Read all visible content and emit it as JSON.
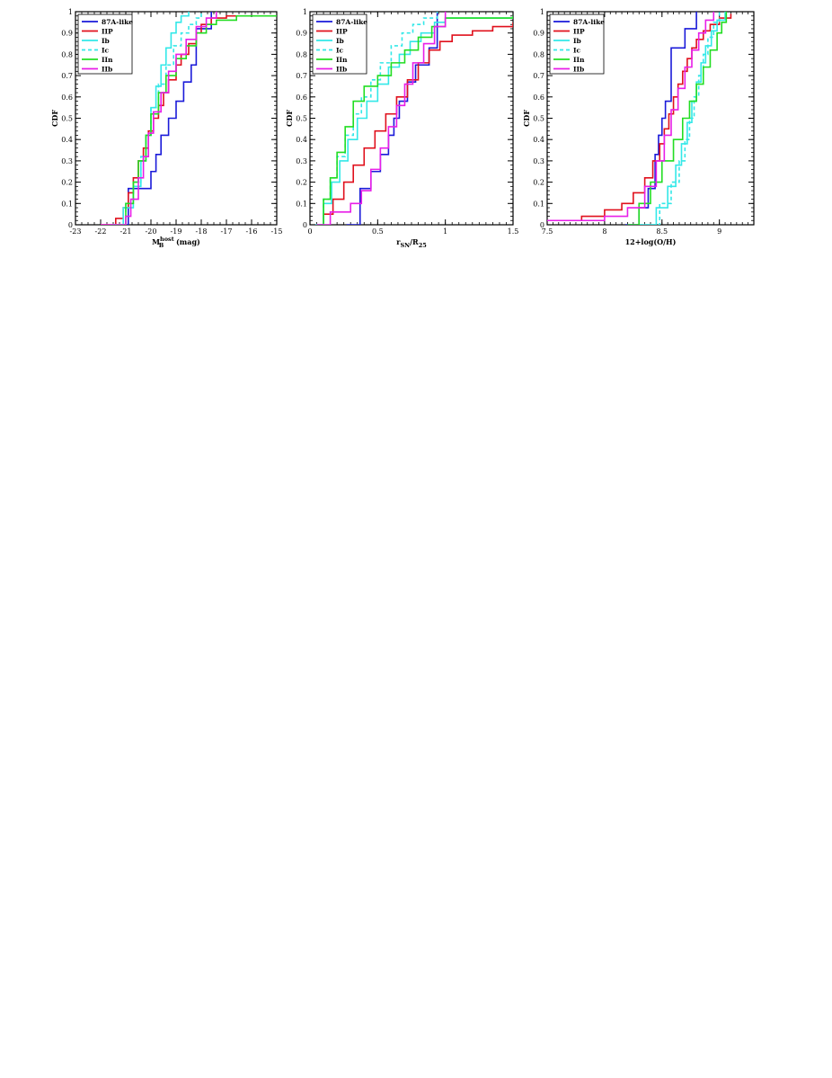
{
  "colors": {
    "87A-like": "#1a1ad9",
    "IIP": "#e0101c",
    "Ib": "#33e8e8",
    "Ic": "#33e8e8",
    "IIn": "#22dd22",
    "IIb": "#e81ee8"
  },
  "chart_data": [
    {
      "type": "line",
      "title": "",
      "xlabel": "M_B^host (mag)",
      "xlabel_main": "M",
      "xlabel_sub": "B",
      "xlabel_sup": "host",
      "xlabel_tail": " (mag)",
      "ylabel": "CDF",
      "xlim": [
        -23,
        -15
      ],
      "ylim": [
        0,
        1
      ],
      "xticks": [
        -23,
        -22,
        -21,
        -20,
        -19,
        -18,
        -17,
        -16,
        -15
      ],
      "xtick_labels": [
        "-23",
        "-22",
        "-21",
        "-20",
        "-19",
        "-18",
        "-17",
        "-16",
        "-15"
      ],
      "yticks": [
        0,
        0.1,
        0.2,
        0.3,
        0.4,
        0.5,
        0.6,
        0.7,
        0.8,
        0.9,
        1
      ],
      "ytick_labels": [
        "0",
        "0.1",
        "0.2",
        "0.3",
        "0.4",
        "0.5",
        "0.6",
        "0.7",
        "0.8",
        "0.9",
        "1"
      ],
      "legend": "top-left",
      "series": [
        {
          "name": "87A-like",
          "style": "solid",
          "x": [
            -21.2,
            -20.9,
            -20.3,
            -20.0,
            -19.8,
            -19.6,
            -19.3,
            -19.0,
            -18.7,
            -18.4,
            -18.2,
            -17.6
          ],
          "y": [
            0.0,
            0.17,
            0.17,
            0.25,
            0.33,
            0.42,
            0.5,
            0.58,
            0.67,
            0.75,
            0.92,
            1.0
          ]
        },
        {
          "name": "IIP",
          "style": "solid",
          "x": [
            -22.0,
            -21.4,
            -21.1,
            -20.9,
            -20.7,
            -20.5,
            -20.3,
            -20.1,
            -19.9,
            -19.7,
            -19.5,
            -19.3,
            -19.0,
            -18.8,
            -18.5,
            -18.2,
            -18.0,
            -17.6,
            -17.0,
            -15.0
          ],
          "y": [
            0.0,
            0.03,
            0.08,
            0.15,
            0.22,
            0.3,
            0.36,
            0.44,
            0.5,
            0.56,
            0.62,
            0.68,
            0.75,
            0.8,
            0.85,
            0.9,
            0.94,
            0.97,
            0.98,
            0.98
          ]
        },
        {
          "name": "Ib",
          "style": "solid",
          "x": [
            -21.6,
            -21.1,
            -20.7,
            -20.4,
            -20.2,
            -20.0,
            -19.8,
            -19.6,
            -19.4,
            -19.2,
            -19.0,
            -18.8,
            -18.5
          ],
          "y": [
            0.0,
            0.08,
            0.18,
            0.3,
            0.42,
            0.55,
            0.65,
            0.75,
            0.83,
            0.9,
            0.95,
            0.98,
            1.0
          ]
        },
        {
          "name": "Ic",
          "style": "dashed",
          "x": [
            -21.5,
            -21.0,
            -20.7,
            -20.4,
            -20.2,
            -20.0,
            -19.7,
            -19.4,
            -19.1,
            -18.8,
            -18.5,
            -18.2,
            -18.0
          ],
          "y": [
            0.0,
            0.1,
            0.2,
            0.32,
            0.42,
            0.55,
            0.66,
            0.75,
            0.84,
            0.9,
            0.94,
            0.97,
            1.0
          ]
        },
        {
          "name": "IIn",
          "style": "solid",
          "x": [
            -21.4,
            -21.0,
            -20.7,
            -20.5,
            -20.2,
            -20.0,
            -19.7,
            -19.4,
            -19.0,
            -18.6,
            -18.2,
            -17.8,
            -17.4,
            -16.6,
            -15.0
          ],
          "y": [
            0.0,
            0.1,
            0.2,
            0.3,
            0.42,
            0.52,
            0.62,
            0.7,
            0.78,
            0.84,
            0.9,
            0.94,
            0.96,
            0.98,
            0.98
          ]
        },
        {
          "name": "IIb",
          "style": "solid",
          "x": [
            -22.0,
            -21.0,
            -20.8,
            -20.5,
            -20.3,
            -20.1,
            -19.9,
            -19.6,
            -19.3,
            -19.0,
            -18.6,
            -18.2,
            -17.8,
            -17.4
          ],
          "y": [
            0.0,
            0.04,
            0.12,
            0.22,
            0.32,
            0.43,
            0.53,
            0.62,
            0.72,
            0.8,
            0.87,
            0.93,
            0.97,
            1.0
          ]
        }
      ]
    },
    {
      "type": "line",
      "title": "",
      "xlabel": "r_SN/R_25",
      "xlabel_main": "r",
      "xlabel_sub": "SN",
      "xlabel_mid": "/R",
      "xlabel_sub2": "25",
      "ylabel": "CDF",
      "xlim": [
        0,
        1.5
      ],
      "ylim": [
        0,
        1
      ],
      "xticks": [
        0,
        0.5,
        1,
        1.5
      ],
      "xtick_labels": [
        "0",
        "0.5",
        "1",
        "1.5"
      ],
      "yticks": [
        0,
        0.1,
        0.2,
        0.3,
        0.4,
        0.5,
        0.6,
        0.7,
        0.8,
        0.9,
        1
      ],
      "ytick_labels": [
        "0",
        "0.1",
        "0.2",
        "0.3",
        "0.4",
        "0.5",
        "0.6",
        "0.7",
        "0.8",
        "0.9",
        "1"
      ],
      "legend": "top-left",
      "series": [
        {
          "name": "87A-like",
          "style": "solid",
          "x": [
            0.27,
            0.37,
            0.45,
            0.52,
            0.58,
            0.62,
            0.66,
            0.72,
            0.78,
            0.88,
            0.94
          ],
          "y": [
            0.0,
            0.17,
            0.25,
            0.33,
            0.42,
            0.5,
            0.58,
            0.67,
            0.75,
            0.83,
            1.0
          ]
        },
        {
          "name": "IIP",
          "style": "solid",
          "x": [
            0.05,
            0.1,
            0.17,
            0.25,
            0.32,
            0.4,
            0.48,
            0.56,
            0.64,
            0.72,
            0.8,
            0.88,
            0.96,
            1.05,
            1.2,
            1.35,
            1.5
          ],
          "y": [
            0.0,
            0.05,
            0.12,
            0.2,
            0.28,
            0.36,
            0.44,
            0.52,
            0.6,
            0.68,
            0.76,
            0.82,
            0.86,
            0.89,
            0.91,
            0.93,
            0.95
          ]
        },
        {
          "name": "Ib",
          "style": "solid",
          "x": [
            0.04,
            0.1,
            0.16,
            0.22,
            0.28,
            0.35,
            0.42,
            0.5,
            0.58,
            0.66,
            0.74,
            0.82,
            0.92,
            1.0,
            1.5
          ],
          "y": [
            0.0,
            0.1,
            0.2,
            0.3,
            0.4,
            0.5,
            0.58,
            0.66,
            0.74,
            0.8,
            0.86,
            0.9,
            0.95,
            0.97,
            0.98
          ]
        },
        {
          "name": "Ic",
          "style": "dashed",
          "x": [
            0.04,
            0.1,
            0.15,
            0.2,
            0.26,
            0.32,
            0.38,
            0.45,
            0.52,
            0.6,
            0.68,
            0.76,
            0.84,
            0.94
          ],
          "y": [
            0.0,
            0.12,
            0.22,
            0.32,
            0.42,
            0.52,
            0.6,
            0.68,
            0.76,
            0.84,
            0.9,
            0.94,
            0.97,
            1.0
          ]
        },
        {
          "name": "IIn",
          "style": "solid",
          "x": [
            0.05,
            0.1,
            0.15,
            0.2,
            0.26,
            0.32,
            0.4,
            0.5,
            0.6,
            0.7,
            0.8,
            0.9,
            1.0,
            1.5
          ],
          "y": [
            0.0,
            0.12,
            0.22,
            0.34,
            0.46,
            0.58,
            0.65,
            0.7,
            0.76,
            0.82,
            0.88,
            0.93,
            0.97,
            0.98
          ]
        },
        {
          "name": "IIb",
          "style": "solid",
          "x": [
            0.05,
            0.15,
            0.3,
            0.38,
            0.45,
            0.52,
            0.58,
            0.64,
            0.7,
            0.76,
            0.84,
            0.92,
            1.0
          ],
          "y": [
            0.0,
            0.06,
            0.1,
            0.16,
            0.26,
            0.36,
            0.46,
            0.56,
            0.66,
            0.76,
            0.85,
            0.93,
            1.0
          ]
        }
      ]
    },
    {
      "type": "line",
      "title": "",
      "xlabel": "12+log(O/H)",
      "ylabel": "CDF",
      "xlim": [
        7.5,
        9.3
      ],
      "ylim": [
        0,
        1
      ],
      "xticks": [
        7.5,
        8,
        8.5,
        9
      ],
      "xtick_labels": [
        "7.5",
        "8",
        "8.5",
        "9"
      ],
      "yticks": [
        0,
        0.1,
        0.2,
        0.3,
        0.4,
        0.5,
        0.6,
        0.7,
        0.8,
        0.9,
        1
      ],
      "ytick_labels": [
        "0",
        "0.1",
        "0.2",
        "0.3",
        "0.4",
        "0.5",
        "0.6",
        "0.7",
        "0.8",
        "0.9",
        "1"
      ],
      "legend": "top-left",
      "series": [
        {
          "name": "87A-like",
          "style": "solid",
          "x": [
            8.18,
            8.3,
            8.38,
            8.44,
            8.47,
            8.5,
            8.53,
            8.58,
            8.7,
            8.8
          ],
          "y": [
            0.0,
            0.08,
            0.17,
            0.33,
            0.42,
            0.5,
            0.58,
            0.83,
            0.92,
            1.0
          ]
        },
        {
          "name": "IIP",
          "style": "solid",
          "x": [
            7.5,
            7.8,
            8.0,
            8.15,
            8.25,
            8.35,
            8.42,
            8.48,
            8.52,
            8.56,
            8.6,
            8.64,
            8.68,
            8.72,
            8.76,
            8.8,
            8.86,
            8.92,
            9.0,
            9.1
          ],
          "y": [
            0.02,
            0.04,
            0.07,
            0.1,
            0.15,
            0.22,
            0.3,
            0.38,
            0.45,
            0.52,
            0.6,
            0.66,
            0.72,
            0.78,
            0.83,
            0.87,
            0.91,
            0.94,
            0.97,
            0.99
          ]
        },
        {
          "name": "Ib",
          "style": "solid",
          "x": [
            8.3,
            8.45,
            8.55,
            8.62,
            8.67,
            8.72,
            8.76,
            8.8,
            8.84,
            8.88,
            8.93,
            8.98,
            9.05
          ],
          "y": [
            0.0,
            0.08,
            0.18,
            0.28,
            0.38,
            0.48,
            0.58,
            0.67,
            0.76,
            0.84,
            0.91,
            0.96,
            1.0
          ]
        },
        {
          "name": "Ic",
          "style": "dashed",
          "x": [
            8.3,
            8.48,
            8.58,
            8.65,
            8.7,
            8.74,
            8.78,
            8.82,
            8.86,
            8.9,
            8.95,
            9.0
          ],
          "y": [
            0.0,
            0.1,
            0.2,
            0.3,
            0.4,
            0.5,
            0.6,
            0.7,
            0.8,
            0.88,
            0.95,
            1.0
          ]
        },
        {
          "name": "IIn",
          "style": "solid",
          "x": [
            8.2,
            8.3,
            8.4,
            8.5,
            8.6,
            8.68,
            8.74,
            8.8,
            8.86,
            8.92,
            8.98,
            9.02,
            9.06
          ],
          "y": [
            0.0,
            0.1,
            0.2,
            0.3,
            0.4,
            0.5,
            0.58,
            0.66,
            0.74,
            0.82,
            0.9,
            0.95,
            1.0
          ]
        },
        {
          "name": "IIb",
          "style": "solid",
          "x": [
            7.5,
            8.0,
            8.2,
            8.35,
            8.45,
            8.52,
            8.58,
            8.64,
            8.7,
            8.76,
            8.82,
            8.88,
            8.95
          ],
          "y": [
            0.02,
            0.04,
            0.08,
            0.18,
            0.3,
            0.42,
            0.54,
            0.64,
            0.74,
            0.82,
            0.9,
            0.96,
            1.0
          ]
        }
      ]
    }
  ]
}
